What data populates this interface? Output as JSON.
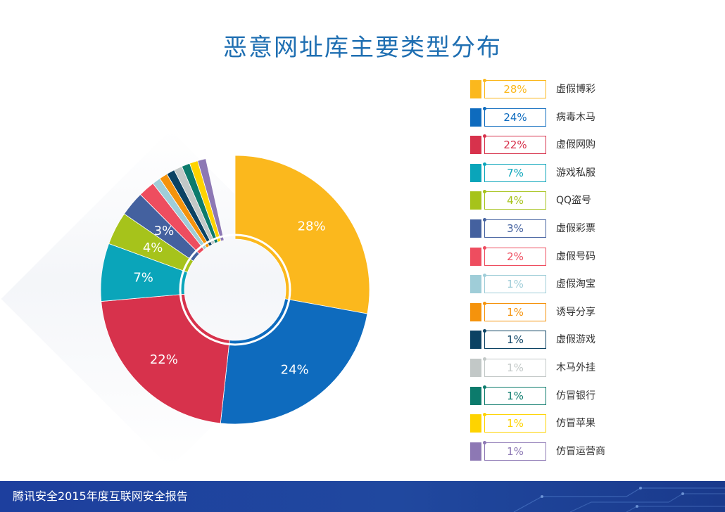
{
  "title": "恶意网址库主要类型分布",
  "footer": "腾讯安全2015年度互联网安全报告",
  "chart_data": {
    "type": "pie",
    "donut": true,
    "categories": [
      "虚假博彩",
      "病毒木马",
      "虚假网购",
      "游戏私服",
      "QQ盗号",
      "虚假彩票",
      "虚假号码",
      "虚假淘宝",
      "诱导分享",
      "虚假游戏",
      "木马外挂",
      "仿冒银行",
      "仿冒苹果",
      "仿冒运营商"
    ],
    "values": [
      28,
      24,
      22,
      7,
      4,
      3,
      2,
      1,
      1,
      1,
      1,
      1,
      1,
      1
    ],
    "value_labels": [
      "28%",
      "24%",
      "22%",
      "7%",
      "4%",
      "3%",
      "2%",
      "1%",
      "1%",
      "1%",
      "1%",
      "1%",
      "1%",
      "1%"
    ],
    "colors": [
      "#fbb81d",
      "#0e6bbe",
      "#d7324c",
      "#0aa5ba",
      "#a6c31b",
      "#44619f",
      "#ee4d5f",
      "#9fcdd8",
      "#f5930c",
      "#0b4263",
      "#c2c8c7",
      "#0c7b6c",
      "#fed300",
      "#8d78b4"
    ],
    "legend_position": "right"
  }
}
